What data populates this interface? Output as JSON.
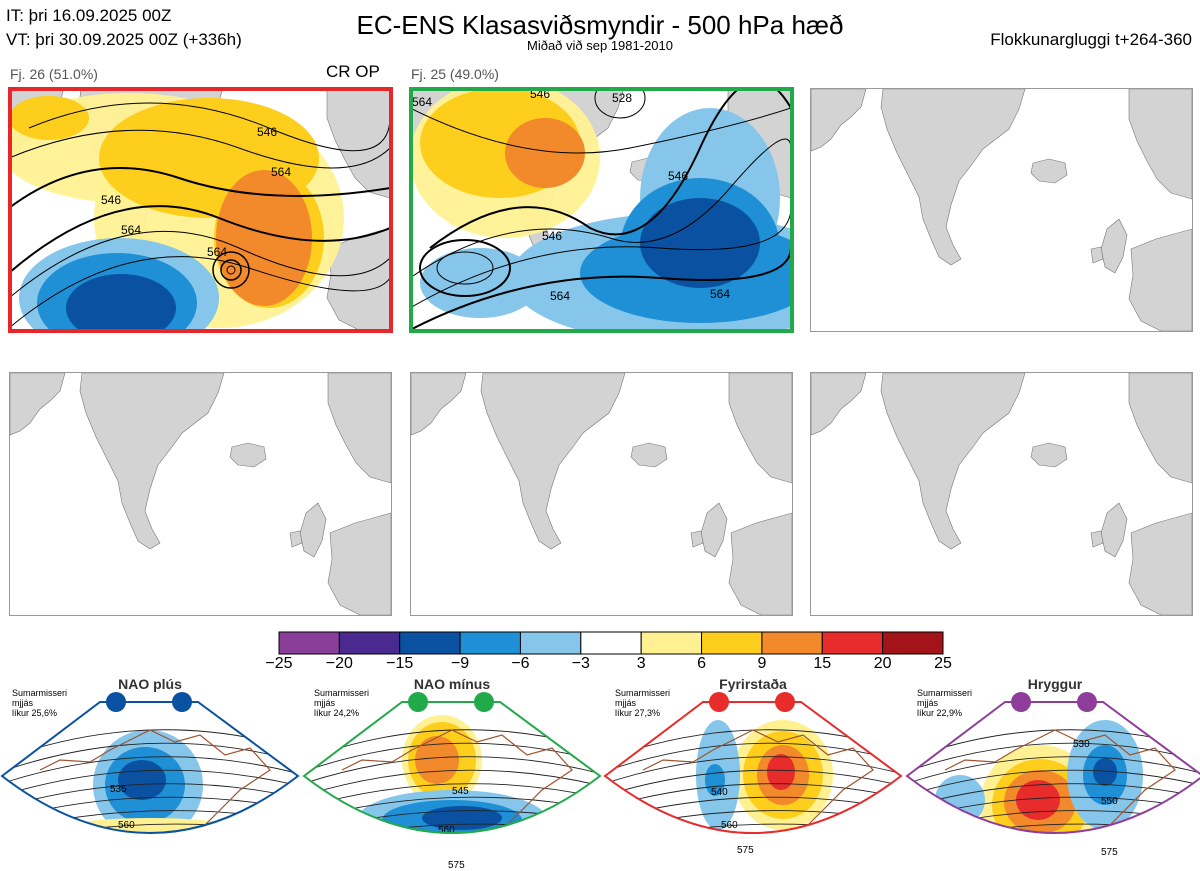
{
  "header": {
    "it_label": "IT: þri 16.09.2025 00Z",
    "vt_label": "VT: þri 30.09.2025 00Z  (+336h)",
    "title": "EC-ENS Klasasviðsmyndir - 500 hPa hæð",
    "subtitle": "Miðað við sep 1981-2010",
    "window_label": "Flokkunargluggi t+264-360"
  },
  "clusters": [
    {
      "label": "Fj. 26 (51.0%)",
      "tag": "CR OP",
      "border_color": "#e8272a",
      "contours": [
        "546",
        "564",
        "546",
        "564",
        "564"
      ]
    },
    {
      "label": "Fj. 25 (49.0%)",
      "tag": "",
      "border_color": "#21a94a",
      "contours": [
        "564",
        "546",
        "528",
        "546",
        "564",
        "564",
        "546"
      ]
    }
  ],
  "colorbar": {
    "ticks": [
      "−25",
      "−20",
      "−15",
      "−9",
      "−6",
      "−3",
      "3",
      "6",
      "9",
      "15",
      "20",
      "25"
    ],
    "colors": [
      "#8a3e9a",
      "#4a2a8e",
      "#0a52a1",
      "#1f8fd6",
      "#85c6ea",
      "#ffffff",
      "#fff192",
      "#fdce1c",
      "#f2892a",
      "#e82b2b",
      "#a3141a"
    ]
  },
  "regimes": [
    {
      "name": "NAO plús",
      "season": "Sumarmisseri",
      "mean_label": "mjjás",
      "prob": "líkur 25,6%",
      "color": "#0a52a1",
      "contours": [
        "535",
        "560"
      ]
    },
    {
      "name": "NAO mínus",
      "season": "Sumarmisseri",
      "mean_label": "mjjás",
      "prob": "líkur 24,2%",
      "color": "#21a94a",
      "contours": [
        "545",
        "560",
        "575"
      ]
    },
    {
      "name": "Fyrirstaða",
      "season": "Sumarmisseri",
      "mean_label": "mjjás",
      "prob": "líkur 27,3%",
      "color": "#e82b2b",
      "contours": [
        "540",
        "560",
        "575"
      ]
    },
    {
      "name": "Hryggur",
      "season": "Sumarmisseri",
      "mean_label": "mjjás",
      "prob": "líkur 22,9%",
      "color": "#8e3e9a",
      "contours": [
        "530",
        "550",
        "575"
      ]
    }
  ]
}
